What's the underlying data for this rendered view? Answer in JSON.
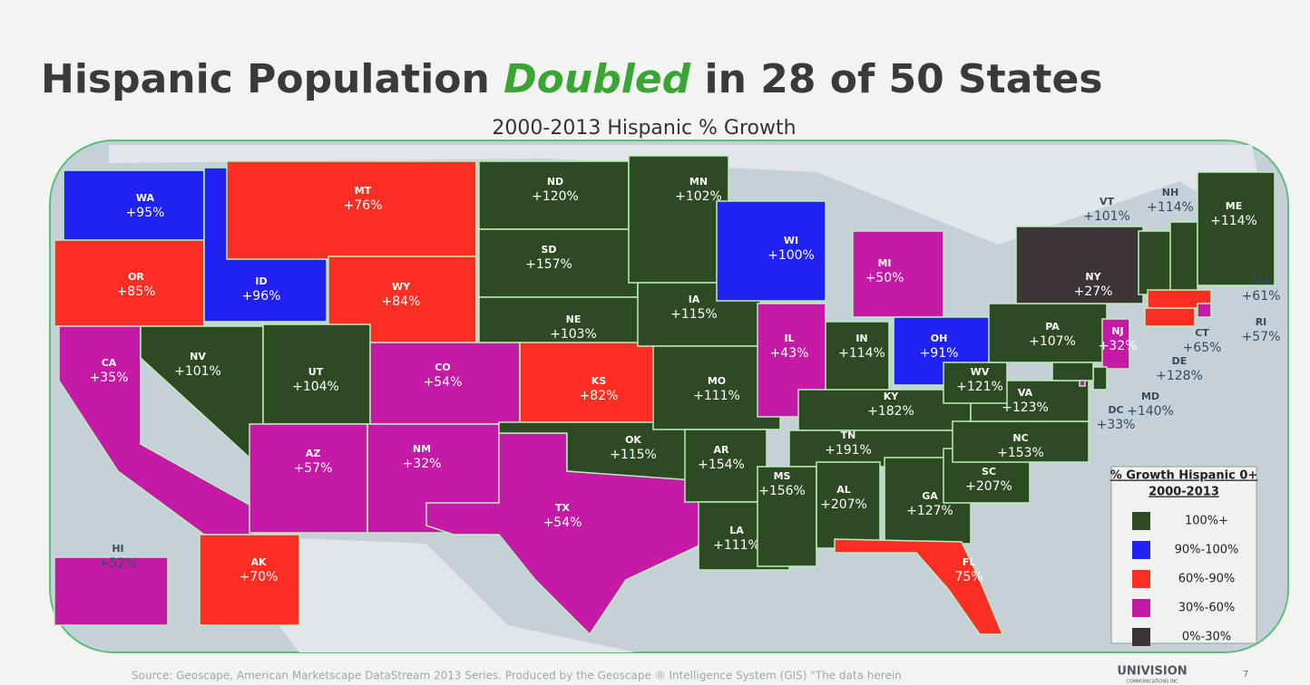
{
  "header": {
    "title_start": "Hispanic Population",
    "title_emphasis": "Doubled",
    "title_end": "in 28 of 50 States",
    "subtitle": "2000-2013 Hispanic % Growth"
  },
  "legend": {
    "title": [
      "% Growth Hispanic 0+",
      "2000-2013"
    ],
    "items": [
      {
        "label": "100%+",
        "color": "#2e4a24"
      },
      {
        "label": "90%-100%",
        "color": "#1f22f2"
      },
      {
        "label": "60%-90%",
        "color": "#fa2e22"
      },
      {
        "label": "30%-60%",
        "color": "#c41aa6"
      },
      {
        "label": "0%-30%",
        "color": "#3d3535"
      }
    ]
  },
  "states": [
    {
      "abbr": "WA",
      "label": "+95%",
      "group": 1
    },
    {
      "abbr": "OR",
      "label": "+85%",
      "group": 2
    },
    {
      "abbr": "CA",
      "label": "+35%",
      "group": 3
    },
    {
      "abbr": "ID",
      "label": "+96%",
      "group": 1
    },
    {
      "abbr": "MT",
      "label": "+76%",
      "group": 2
    },
    {
      "abbr": "WY",
      "label": "+84%",
      "group": 2
    },
    {
      "abbr": "NV",
      "label": "+101%",
      "group": 0
    },
    {
      "abbr": "UT",
      "label": "+104%",
      "group": 0
    },
    {
      "abbr": "CO",
      "label": "+54%",
      "group": 3
    },
    {
      "abbr": "AZ",
      "label": "+57%",
      "group": 3
    },
    {
      "abbr": "NM",
      "label": "+32%",
      "group": 3
    },
    {
      "abbr": "ND",
      "label": "+120%",
      "group": 0
    },
    {
      "abbr": "SD",
      "label": "+157%",
      "group": 0
    },
    {
      "abbr": "NE",
      "label": "+103%",
      "group": 0
    },
    {
      "abbr": "TX",
      "label": "+54%",
      "group": 3
    },
    {
      "abbr": "KS",
      "label": "+82%",
      "group": 2
    },
    {
      "abbr": "OK",
      "label": "+115%",
      "group": 0
    },
    {
      "abbr": "MN",
      "label": "+102%",
      "group": 0
    },
    {
      "abbr": "IA",
      "label": "+115%",
      "group": 0
    },
    {
      "abbr": "MO",
      "label": "+111%",
      "group": 0
    },
    {
      "abbr": "AR",
      "label": "+154%",
      "group": 0
    },
    {
      "abbr": "LA",
      "label": "+111%",
      "group": 0
    },
    {
      "abbr": "WI",
      "label": "+100%",
      "group": 1
    },
    {
      "abbr": "IL",
      "label": "+43%",
      "group": 3
    },
    {
      "abbr": "MI",
      "label": "+50%",
      "group": 3
    },
    {
      "abbr": "IN",
      "label": "+114%",
      "group": 0
    },
    {
      "abbr": "OH",
      "label": "+91%",
      "group": 1
    },
    {
      "abbr": "KY",
      "label": "+182%",
      "group": 0
    },
    {
      "abbr": "TN",
      "label": "+191%",
      "group": 0
    },
    {
      "abbr": "MS",
      "label": "+156%",
      "group": 0
    },
    {
      "abbr": "AL",
      "label": "+207%",
      "group": 0
    },
    {
      "abbr": "GA",
      "label": "+127%",
      "group": 0
    },
    {
      "abbr": "FL",
      "label": "75%",
      "group": 2
    },
    {
      "abbr": "SC",
      "label": "+207%",
      "group": 0
    },
    {
      "abbr": "NC",
      "label": "+153%",
      "group": 0
    },
    {
      "abbr": "VA",
      "label": "+123%",
      "group": 0
    },
    {
      "abbr": "WV",
      "label": "+121%",
      "group": 0
    },
    {
      "abbr": "PA",
      "label": "+107%",
      "group": 0
    },
    {
      "abbr": "NY",
      "label": "+27%",
      "group": 4
    },
    {
      "abbr": "VT",
      "label": "+101%",
      "group": 0
    },
    {
      "abbr": "NH",
      "label": "+114%",
      "group": 0
    },
    {
      "abbr": "ME",
      "label": "+114%",
      "group": 0
    },
    {
      "abbr": "MA",
      "label": "+61%",
      "group": 2
    },
    {
      "abbr": "RI",
      "label": "+57%",
      "group": 3
    },
    {
      "abbr": "CT",
      "label": "+65%",
      "group": 2
    },
    {
      "abbr": "NJ",
      "label": "+32%",
      "group": 3
    },
    {
      "abbr": "DE",
      "label": "+128%",
      "group": 0
    },
    {
      "abbr": "MD",
      "label": "+140%",
      "group": 0
    },
    {
      "abbr": "DC",
      "label": "+33%",
      "group": 3
    },
    {
      "abbr": "HI",
      "label": "+52%",
      "group": 3
    },
    {
      "abbr": "AK",
      "label": "+70%",
      "group": 2
    }
  ],
  "footer": {
    "source": "Source: Geoscape, American Marketscape DataStream 2013 Series.   Produced by the Geoscape ® Intelligence System (GIS) \"The data herein",
    "logo": "UNIVISION",
    "logo_sub": "COMMUNICATIONS INC",
    "page": "7"
  }
}
